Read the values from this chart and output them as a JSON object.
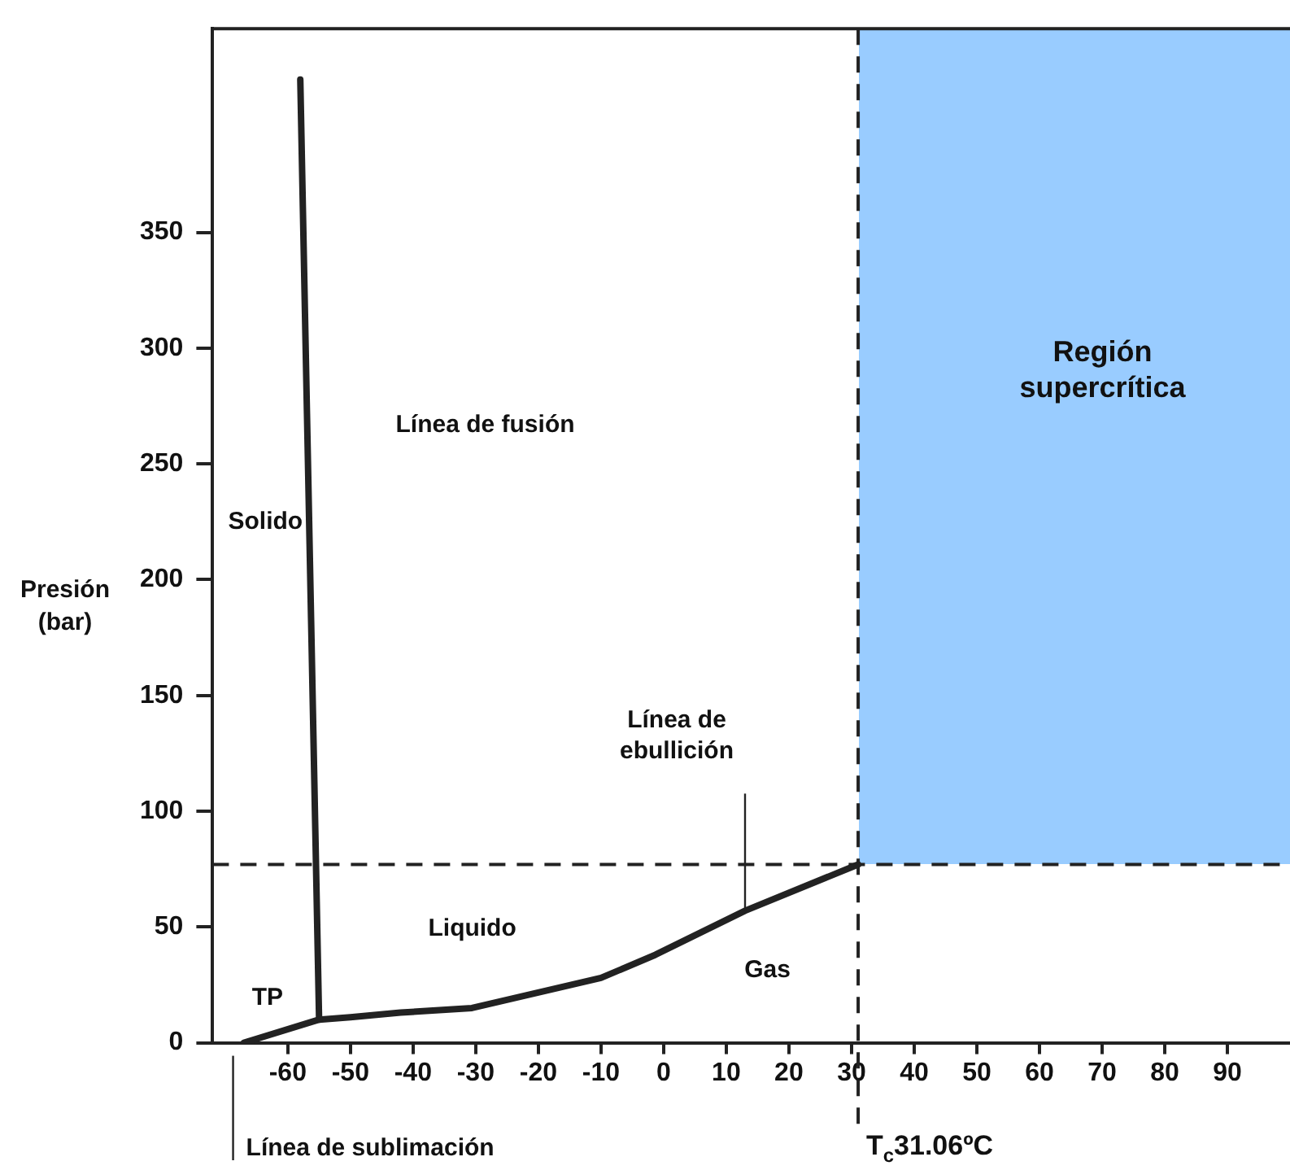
{
  "chart_data": {
    "type": "line",
    "ylabel": "Presión (bar)",
    "xlim": [
      -72,
      100
    ],
    "ylim": [
      0,
      438
    ],
    "xticks": [
      -60,
      -50,
      -40,
      -30,
      -20,
      -10,
      0,
      10,
      20,
      30,
      40,
      50,
      60,
      70,
      80,
      90
    ],
    "yticks": [
      0,
      50,
      100,
      150,
      200,
      250,
      300,
      350
    ],
    "grid": false,
    "legend": false,
    "marker": "none",
    "series": [
      {
        "color": "#222222",
        "x": [
          -55,
          -58
        ],
        "values": [
          10,
          416
        ]
      },
      {
        "color": "#222222",
        "x": [
          -67,
          -55,
          -50,
          -42,
          -30.6,
          -10,
          -1.3,
          13,
          31.06
        ],
        "values": [
          0,
          10,
          11,
          13,
          15,
          28,
          38,
          57,
          77
        ]
      }
    ],
    "ref_lines": [
      {
        "axis": "y",
        "value": 77,
        "line_style": "dashed",
        "color": "#222222"
      },
      {
        "axis": "x",
        "value": 31.06,
        "label": "T$_{c}$31.06ºC",
        "line_style": "dashed",
        "color": "#222222"
      }
    ],
    "annotations": [
      "Región supercrítica",
      "Línea de fusión",
      "Solido",
      {
        "text": "Línea de ebullición",
        "x": 13,
        "y": 57
      },
      "Liquido",
      "Gas",
      "TP",
      "Línea de sublimación"
    ]
  }
}
